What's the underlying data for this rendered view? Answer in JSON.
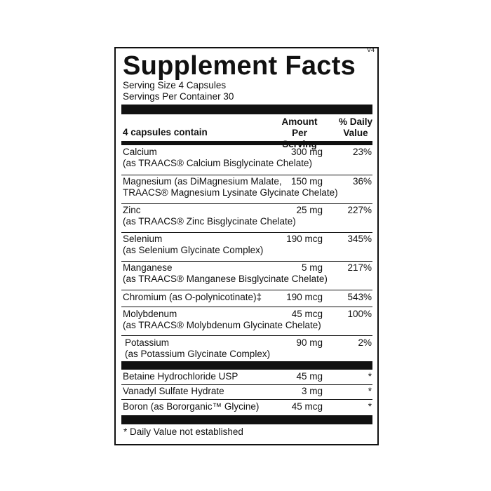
{
  "header": {
    "title": "Supplement Facts",
    "version": "V4",
    "serving_size": "Serving Size 4 Capsules",
    "servings_per_container": "Servings Per Container 30"
  },
  "table": {
    "columns": [
      "4 capsules contain",
      "Amount Per Serving",
      "% Daily Value"
    ],
    "rows": [
      {
        "name": "Calcium",
        "detail": "(as TRAACS® Calcium Bisglycinate Chelate)",
        "amount": "300 mg",
        "daily_value": "23%"
      },
      {
        "name": "Magnesium (as DiMagnesium Malate,",
        "detail": "TRAACS® Magnesium Lysinate Glycinate Chelate)",
        "amount": "150 mg",
        "daily_value": "36%"
      },
      {
        "name": "Zinc",
        "detail": "(as TRAACS® Zinc Bisglycinate Chelate)",
        "amount": "25 mg",
        "daily_value": "227%"
      },
      {
        "name": "Selenium",
        "detail": "(as Selenium Glycinate Complex)",
        "amount": "190 mcg",
        "daily_value": "345%"
      },
      {
        "name": "Manganese",
        "detail": "(as TRAACS® Manganese Bisglycinate Chelate)",
        "amount": "5 mg",
        "daily_value": "217%"
      },
      {
        "name": "Chromium (as O-polynicotinate)‡",
        "amount": "190 mcg",
        "daily_value": "543%"
      },
      {
        "name": "Molybdenum",
        "detail": "(as TRAACS® Molybdenum Glycinate Chelate)",
        "amount": "45 mcg",
        "daily_value": "100%"
      },
      {
        "name": "Potassium",
        "detail": "(as Potassium Glycinate Complex)",
        "amount": "90 mg",
        "daily_value": "2%"
      }
    ],
    "other_rows": [
      {
        "name": "Betaine Hydrochloride USP",
        "amount": "45 mg",
        "daily_value": "*"
      },
      {
        "name": "Vanadyl Sulfate Hydrate",
        "amount": "3 mg",
        "daily_value": "*"
      },
      {
        "name": "Boron (as Bororganic™ Glycine)",
        "amount": "45 mcg",
        "daily_value": "*"
      }
    ]
  },
  "footnote": "* Daily Value not established"
}
